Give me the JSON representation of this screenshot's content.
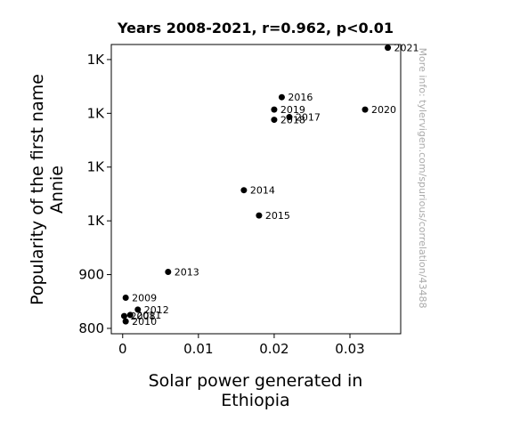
{
  "chart_data": {
    "type": "scatter",
    "title": "Years 2008-2021, r=0.962, p<0.01",
    "xlabel_lines": [
      "Solar power generated in",
      "Ethiopia"
    ],
    "ylabel_lines": [
      "Popularity of the first name",
      "Annie"
    ],
    "watermark": "More info: tylervigen.com/spurious/correlation/43488",
    "xlim": [
      -0.0015,
      0.0367
    ],
    "ylim": [
      790,
      1328
    ],
    "x_ticks": [
      {
        "value": 0,
        "label": "0"
      },
      {
        "value": 0.01,
        "label": "0.01"
      },
      {
        "value": 0.02,
        "label": "0.02"
      },
      {
        "value": 0.03,
        "label": "0.03"
      }
    ],
    "y_ticks": [
      {
        "value": 800,
        "label": "800"
      },
      {
        "value": 900,
        "label": "900"
      },
      {
        "value": 1000,
        "label": "1K"
      },
      {
        "value": 1100,
        "label": "1K"
      },
      {
        "value": 1200,
        "label": "1K"
      },
      {
        "value": 1300,
        "label": "1K"
      }
    ],
    "marker_color": "#000000",
    "grid": false,
    "points": [
      {
        "label": "2008",
        "x": 0.0002,
        "y": 823
      },
      {
        "label": "2009",
        "x": 0.0004,
        "y": 857
      },
      {
        "label": "2010",
        "x": 0.0004,
        "y": 813
      },
      {
        "label": "2011",
        "x": 0.001,
        "y": 825
      },
      {
        "label": "2012",
        "x": 0.002,
        "y": 835
      },
      {
        "label": "2013",
        "x": 0.006,
        "y": 905
      },
      {
        "label": "2014",
        "x": 0.016,
        "y": 1057
      },
      {
        "label": "2015",
        "x": 0.018,
        "y": 1010
      },
      {
        "label": "2016",
        "x": 0.021,
        "y": 1230
      },
      {
        "label": "2017",
        "x": 0.022,
        "y": 1193
      },
      {
        "label": "2018",
        "x": 0.02,
        "y": 1188
      },
      {
        "label": "2019",
        "x": 0.02,
        "y": 1207
      },
      {
        "label": "2020",
        "x": 0.032,
        "y": 1207
      },
      {
        "label": "2021",
        "x": 0.035,
        "y": 1322
      }
    ]
  }
}
